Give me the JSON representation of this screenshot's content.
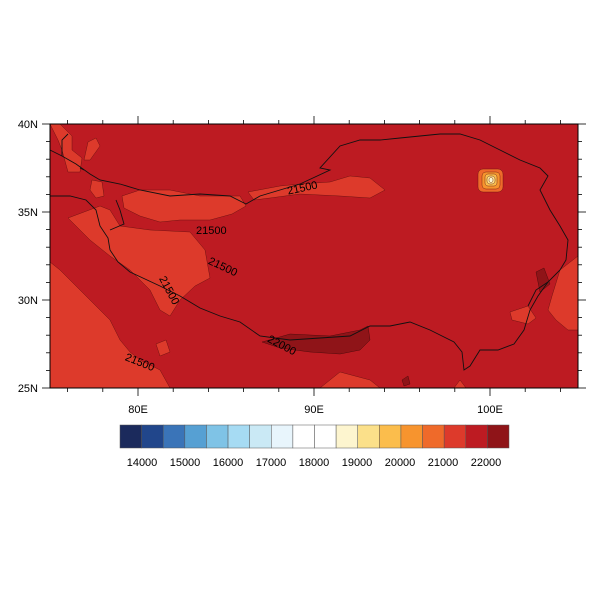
{
  "map": {
    "lon_range": [
      "75E",
      "105E"
    ],
    "lat_range": [
      "25N",
      "40N"
    ],
    "x_tick_labels": [
      "80E",
      "90E",
      "100E"
    ],
    "y_tick_labels": [
      "40N",
      "35N",
      "30N",
      "25N"
    ],
    "contour_labels": [
      "21500",
      "21500",
      "21500",
      "21500",
      "21500",
      "22000"
    ],
    "fill_colors": {
      "base": "#bd1b22",
      "lighter": "#dd3a2b",
      "darker": "#8f1418"
    }
  },
  "colorbar": {
    "colors": [
      "#1b2a5c",
      "#21468b",
      "#3a74b8",
      "#56a0d3",
      "#7fc3e6",
      "#a6dbf3",
      "#cae9f5",
      "#e8f5fc",
      "#ffffff",
      "#ffffff",
      "#fdf5cf",
      "#fbe08a",
      "#fbbd4c",
      "#f7942e",
      "#ef6a2a",
      "#dd3a2b",
      "#bd1b22",
      "#8f1418"
    ],
    "labels": [
      "14000",
      "15000",
      "16000",
      "17000",
      "18000",
      "19000",
      "20000",
      "21000",
      "22000"
    ]
  }
}
